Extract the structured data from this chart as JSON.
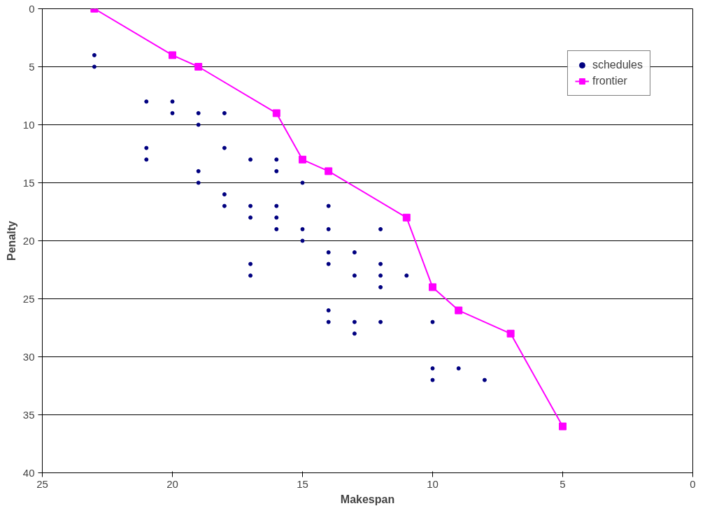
{
  "chart_data": {
    "type": "scatter",
    "xlabel": "Makespan",
    "ylabel": "Penalty",
    "xlim": [
      25,
      0
    ],
    "ylim": [
      40,
      0
    ],
    "xticks": [
      25,
      20,
      15,
      10,
      5,
      0
    ],
    "yticks": [
      0,
      5,
      10,
      15,
      20,
      25,
      30,
      35,
      40
    ],
    "grid": "y",
    "legend": "top right",
    "series": [
      {
        "name": "schedules",
        "marker": "circle",
        "color": "#000080",
        "x": [
          23,
          23,
          21,
          21,
          21,
          20,
          20,
          19,
          19,
          19,
          19,
          18,
          18,
          18,
          18,
          17,
          17,
          17,
          17,
          17,
          16,
          16,
          16,
          16,
          16,
          15,
          15,
          15,
          14,
          14,
          14,
          14,
          14,
          14,
          13,
          13,
          13,
          13,
          12,
          12,
          12,
          12,
          12,
          11,
          10,
          10,
          10,
          9,
          8
        ],
        "values": [
          4,
          5,
          8,
          12,
          13,
          8,
          9,
          9,
          10,
          14,
          15,
          9,
          12,
          16,
          17,
          13,
          17,
          18,
          22,
          23,
          13,
          14,
          17,
          18,
          19,
          15,
          19,
          20,
          17,
          19,
          21,
          22,
          26,
          27,
          21,
          23,
          27,
          28,
          19,
          22,
          23,
          24,
          27,
          23,
          27,
          31,
          32,
          31,
          32
        ]
      },
      {
        "name": "frontier",
        "type": "line",
        "marker": "square",
        "color": "#ff00ff",
        "x": [
          23,
          20,
          19,
          16,
          15,
          14,
          11,
          10,
          9,
          7,
          5
        ],
        "values": [
          0,
          4,
          5,
          9,
          13,
          14,
          18,
          24,
          26,
          28,
          36
        ]
      }
    ]
  }
}
